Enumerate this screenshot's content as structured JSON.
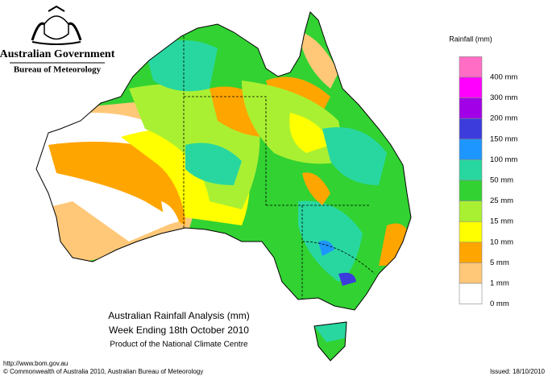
{
  "header": {
    "government": "Australian Government",
    "agency": "Bureau of Meteorology"
  },
  "map": {
    "title": "Australian Rainfall Analysis (mm)",
    "period": "Week Ending 18th October 2010",
    "producer": "Product of the National Climate Centre"
  },
  "legend": {
    "title": "Rainfall (mm)",
    "colors": [
      "#ff6ec4",
      "#ff00ff",
      "#a200e6",
      "#3c3cdc",
      "#1e96ff",
      "#28d7a0",
      "#32d232",
      "#aaf032",
      "#ffff00",
      "#ffa500",
      "#ffc878",
      "#ffffff"
    ],
    "labels": [
      "400 mm",
      "300 mm",
      "200 mm",
      "150 mm",
      "100 mm",
      "50 mm",
      "25 mm",
      "15 mm",
      "10 mm",
      "5 mm",
      "1 mm",
      "0 mm"
    ]
  },
  "footer": {
    "url": "http://www.bom.gov.au",
    "copyright": "© Commonwealth of Australia 2010, Australian Bureau of Meteorology",
    "issued": "Issued: 18/10/2010"
  }
}
